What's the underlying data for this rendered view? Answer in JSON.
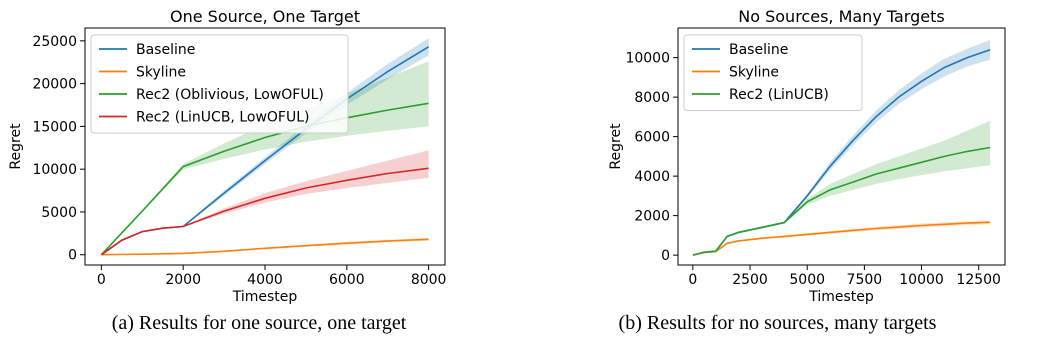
{
  "chart_data": [
    {
      "type": "line",
      "title": "One Source, One Target",
      "xlabel": "Timestep",
      "ylabel": "Regret",
      "xlim": [
        -400,
        8400
      ],
      "ylim": [
        -1200,
        26500
      ],
      "xticks": [
        0,
        2000,
        4000,
        6000,
        8000
      ],
      "yticks": [
        0,
        5000,
        10000,
        15000,
        20000,
        25000
      ],
      "xtick_labels": [
        "0",
        "2000",
        "4000",
        "6000",
        "8000"
      ],
      "ytick_labels": [
        "0",
        "5000",
        "10000",
        "15000",
        "20000",
        "25000"
      ],
      "legend": "upper-left",
      "caption": "(a) Results for one source, one target",
      "series": [
        {
          "name": "Baseline",
          "color": "#1f77b4",
          "x": [
            0,
            500,
            1000,
            1500,
            2000,
            3000,
            4000,
            5000,
            6000,
            7000,
            8000
          ],
          "y": [
            0,
            1700,
            2700,
            3100,
            3300,
            7200,
            11000,
            14700,
            18200,
            21400,
            24300
          ],
          "lower": [
            0,
            1650,
            2650,
            3050,
            3250,
            6900,
            10600,
            14200,
            17500,
            20500,
            23300
          ],
          "upper": [
            0,
            1750,
            2750,
            3150,
            3350,
            7500,
            11400,
            15200,
            18900,
            22300,
            25300
          ]
        },
        {
          "name": "Skyline",
          "color": "#ff7f0e",
          "x": [
            0,
            1000,
            2000,
            3000,
            4000,
            5000,
            6000,
            7000,
            8000
          ],
          "y": [
            0,
            60,
            150,
            400,
            750,
            1050,
            1350,
            1600,
            1800
          ],
          "lower": [
            0,
            40,
            120,
            330,
            650,
            930,
            1200,
            1440,
            1630
          ],
          "upper": [
            0,
            80,
            180,
            470,
            850,
            1170,
            1500,
            1760,
            1970
          ]
        },
        {
          "name": "Rec2 (Oblivious, LowOFUL)",
          "color": "#2ca02c",
          "x": [
            0,
            1000,
            2000,
            3000,
            4000,
            5000,
            6000,
            7000,
            8000
          ],
          "y": [
            0,
            5100,
            10300,
            12100,
            13700,
            15000,
            16000,
            16900,
            17700
          ],
          "lower": [
            0,
            5000,
            10000,
            11200,
            12300,
            13200,
            13900,
            14500,
            15000
          ],
          "upper": [
            0,
            5200,
            10600,
            13000,
            15200,
            17000,
            18800,
            20700,
            22600
          ]
        },
        {
          "name": "Rec2 (LinUCB, LowOFUL)",
          "color": "#d62728",
          "x": [
            0,
            500,
            1000,
            1500,
            2000,
            3000,
            4000,
            5000,
            6000,
            7000,
            8000
          ],
          "y": [
            0,
            1700,
            2700,
            3100,
            3300,
            5100,
            6600,
            7800,
            8700,
            9500,
            10100
          ],
          "lower": [
            0,
            1650,
            2650,
            3050,
            3250,
            4800,
            6100,
            7100,
            7800,
            8400,
            9000
          ],
          "upper": [
            0,
            1750,
            2750,
            3150,
            3350,
            5400,
            7200,
            8600,
            9800,
            11000,
            12200
          ]
        }
      ]
    },
    {
      "type": "line",
      "title": "No Sources, Many Targets",
      "xlabel": "Timestep",
      "ylabel": "Regret",
      "xlim": [
        -650,
        13650
      ],
      "ylim": [
        -500,
        11500
      ],
      "xticks": [
        0,
        2500,
        5000,
        7500,
        10000,
        12500
      ],
      "yticks": [
        0,
        2000,
        4000,
        6000,
        8000,
        10000
      ],
      "xtick_labels": [
        "0",
        "2500",
        "5000",
        "7500",
        "10000",
        "12500"
      ],
      "ytick_labels": [
        "0",
        "2000",
        "4000",
        "6000",
        "8000",
        "10000"
      ],
      "legend": "upper-left",
      "caption": "(b) Results for no sources, many targets",
      "series": [
        {
          "name": "Baseline",
          "color": "#1f77b4",
          "x": [
            0,
            500,
            1000,
            1500,
            2000,
            3000,
            4000,
            5000,
            6000,
            7000,
            8000,
            9000,
            10000,
            11000,
            12000,
            13000
          ],
          "y": [
            0,
            150,
            200,
            950,
            1150,
            1400,
            1650,
            3000,
            4500,
            5800,
            7000,
            8000,
            8800,
            9500,
            10000,
            10400
          ],
          "lower": [
            0,
            130,
            180,
            900,
            1100,
            1350,
            1600,
            2900,
            4300,
            5550,
            6700,
            7650,
            8400,
            9050,
            9550,
            9900
          ],
          "upper": [
            0,
            170,
            220,
            1000,
            1200,
            1450,
            1700,
            3100,
            4700,
            6050,
            7300,
            8350,
            9200,
            9950,
            10450,
            10900
          ]
        },
        {
          "name": "Skyline",
          "color": "#ff7f0e",
          "x": [
            0,
            500,
            1000,
            1500,
            2000,
            3000,
            4000,
            5000,
            6000,
            7000,
            8000,
            9000,
            10000,
            11000,
            12000,
            13000
          ],
          "y": [
            0,
            140,
            180,
            600,
            720,
            850,
            950,
            1050,
            1150,
            1250,
            1350,
            1420,
            1500,
            1560,
            1620,
            1660
          ],
          "lower": [
            0,
            120,
            160,
            560,
            680,
            800,
            890,
            990,
            1080,
            1170,
            1260,
            1330,
            1400,
            1460,
            1520,
            1560
          ],
          "upper": [
            0,
            160,
            200,
            640,
            760,
            900,
            1010,
            1110,
            1220,
            1330,
            1440,
            1510,
            1600,
            1660,
            1720,
            1760
          ]
        },
        {
          "name": "Rec2 (LinUCB)",
          "color": "#2ca02c",
          "x": [
            0,
            500,
            1000,
            1500,
            2000,
            3000,
            4000,
            5000,
            6000,
            7000,
            8000,
            9000,
            10000,
            11000,
            12000,
            13000
          ],
          "y": [
            0,
            150,
            200,
            950,
            1150,
            1400,
            1650,
            2700,
            3300,
            3700,
            4100,
            4400,
            4700,
            5000,
            5250,
            5450
          ],
          "lower": [
            0,
            130,
            180,
            900,
            1100,
            1350,
            1600,
            2550,
            3000,
            3300,
            3600,
            3850,
            4050,
            4250,
            4400,
            4550
          ],
          "upper": [
            0,
            170,
            220,
            1000,
            1200,
            1450,
            1700,
            2850,
            3600,
            4100,
            4600,
            5000,
            5400,
            5800,
            6300,
            6800
          ]
        }
      ]
    }
  ]
}
